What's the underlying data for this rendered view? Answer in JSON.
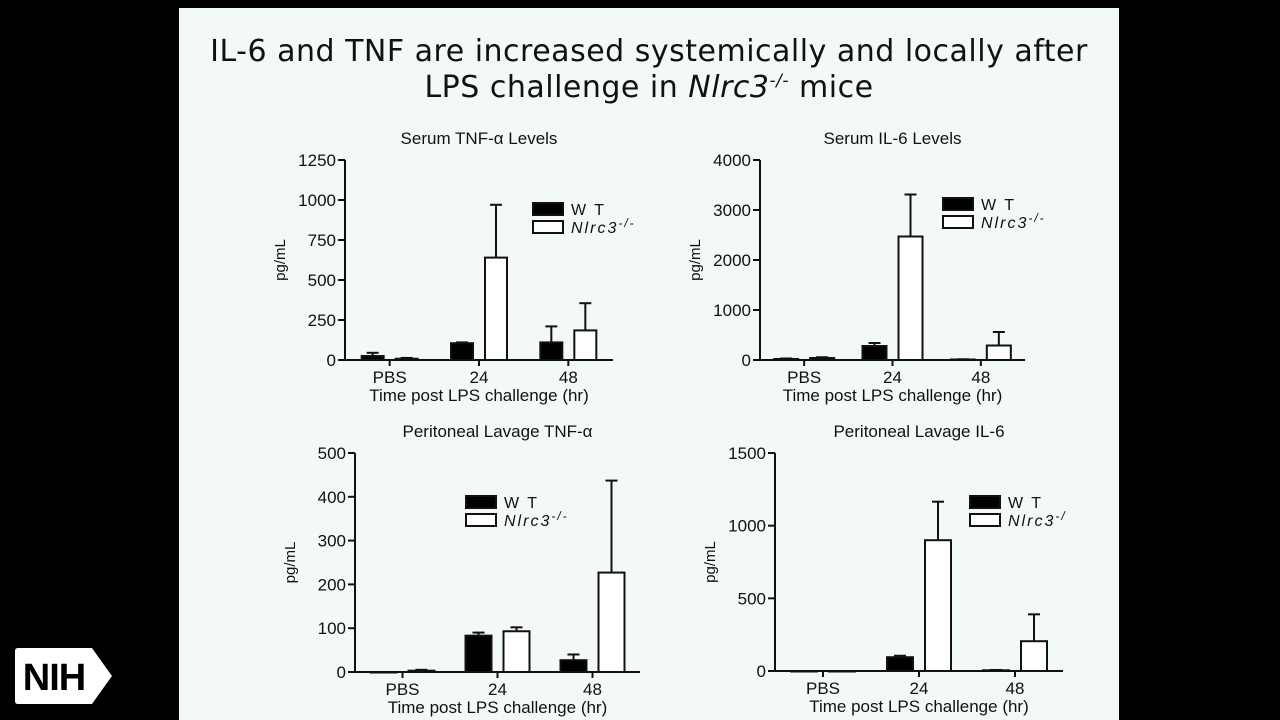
{
  "slide": {
    "title_line1": "IL-6 and TNF are increased systemically and locally after",
    "title_line2_pre": "LPS challenge in ",
    "title_line2_gene": "Nlrc3",
    "title_line2_sup": "-/-",
    "title_line2_post": " mice"
  },
  "logo": {
    "text": "NIH",
    "icon": "nih-chevron-logo"
  },
  "colors": {
    "wt": "#000000",
    "ko": "#ffffff",
    "axis": "#111111",
    "background": "#f3f9f7"
  },
  "chart_data": [
    {
      "type": "bar",
      "title": "Serum TNF-α Levels",
      "xlabel": "Time post LPS challenge (hr)",
      "ylabel": "pg/mL",
      "categories": [
        "PBS",
        "24",
        "48"
      ],
      "ylim": [
        0,
        1250
      ],
      "yticks": [
        "0",
        "250",
        "500",
        "750",
        "1000",
        "1250"
      ],
      "legend_position": "top-right",
      "series": [
        {
          "name": "W T",
          "values": [
            25,
            105,
            110
          ],
          "errors": [
            20,
            5,
            100
          ]
        },
        {
          "name": "Nlrc3",
          "name_sup": "-/-",
          "values": [
            8,
            640,
            185
          ],
          "errors": [
            5,
            330,
            170
          ]
        }
      ]
    },
    {
      "type": "bar",
      "title": "Serum IL-6 Levels",
      "xlabel": "Time post LPS challenge (hr)",
      "ylabel": "pg/mL",
      "categories": [
        "PBS",
        "24",
        "48"
      ],
      "ylim": [
        0,
        4000
      ],
      "yticks": [
        "0",
        "1000",
        "2000",
        "3000",
        "4000"
      ],
      "legend_position": "top-right",
      "series": [
        {
          "name": "W T",
          "values": [
            20,
            280,
            10
          ],
          "errors": [
            10,
            60,
            5
          ]
        },
        {
          "name": "Nlrc3",
          "name_sup": "-/-",
          "values": [
            40,
            2470,
            290
          ],
          "errors": [
            15,
            840,
            270
          ]
        }
      ]
    },
    {
      "type": "bar",
      "title": "Peritoneal Lavage TNF-α",
      "xlabel": "Time post LPS challenge (hr)",
      "ylabel": "pg/mL",
      "categories": [
        "PBS",
        "24",
        "48"
      ],
      "ylim": [
        0,
        500
      ],
      "yticks": [
        "0",
        "100",
        "200",
        "300",
        "400",
        "500"
      ],
      "legend_position": "top-right",
      "series": [
        {
          "name": "W T",
          "values": [
            0,
            83,
            27
          ],
          "errors": [
            0,
            7,
            13
          ]
        },
        {
          "name": "Nlrc3",
          "name_sup": "-/-",
          "values": [
            3,
            93,
            227
          ],
          "errors": [
            2,
            9,
            210
          ]
        }
      ]
    },
    {
      "type": "bar",
      "title": "Peritoneal Lavage IL-6",
      "xlabel": "Time post LPS challenge (hr)",
      "ylabel": "pg/mL",
      "categories": [
        "PBS",
        "24",
        "48"
      ],
      "ylim": [
        0,
        1500
      ],
      "yticks": [
        "0",
        "500",
        "1000",
        "1500"
      ],
      "legend_position": "top-right",
      "series": [
        {
          "name": "W T",
          "values": [
            0,
            95,
            5
          ],
          "errors": [
            0,
            10,
            2
          ]
        },
        {
          "name": "Nlrc3",
          "name_sup": "-/",
          "values": [
            0,
            900,
            205
          ],
          "errors": [
            0,
            265,
            185
          ]
        }
      ]
    }
  ]
}
